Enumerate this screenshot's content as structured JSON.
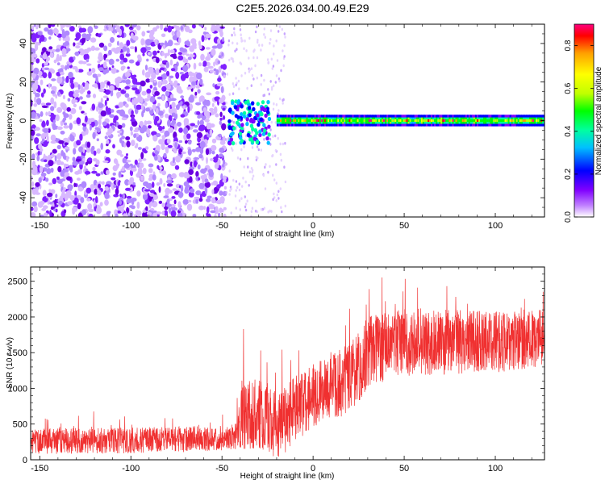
{
  "page_title": "C2E5.2026.034.00.49.E29",
  "chart_data": [
    {
      "type": "heatmap",
      "name": "spectrogram",
      "xlabel": "Height of straight line (km)",
      "ylabel": "Frequency (Hz)",
      "xlim": [
        -155,
        127
      ],
      "ylim": [
        -50,
        50
      ],
      "xticks": [
        -150,
        -100,
        -50,
        0,
        50,
        100
      ],
      "xtick_labels": [
        "-150",
        "-100",
        "-50",
        "0",
        "50",
        "100"
      ],
      "yticks": [
        -40,
        -20,
        0,
        20,
        40
      ],
      "ytick_labels": [
        "-40",
        "-20",
        "0",
        "20",
        "40"
      ],
      "noise_region_x": [
        -155,
        -48
      ],
      "transition_region_x": [
        -48,
        -20
      ],
      "signal_band_x": [
        -20,
        127
      ],
      "signal_frequency_hz": 0,
      "signal_halfwidth_hz": 3,
      "colorbar": {
        "label": "Normalized spectral amplitude",
        "range": [
          0.0,
          0.9
        ],
        "ticks": [
          0.0,
          0.2,
          0.4,
          0.6,
          0.8
        ],
        "tick_labels": [
          "0.0",
          "0.2",
          "0.4",
          "0.6",
          "0.8"
        ],
        "colors": [
          "#ffffff",
          "#c080ff",
          "#8000ff",
          "#0000ff",
          "#00c0ff",
          "#00ffa0",
          "#00ff00",
          "#c0ff00",
          "#ffff00",
          "#ffa000",
          "#ff0000",
          "#ff0080"
        ]
      }
    },
    {
      "type": "line",
      "name": "snr",
      "xlabel": "Height of straight line (km)",
      "ylabel": "SNR (10 * v/v)",
      "xlim": [
        -155,
        127
      ],
      "ylim": [
        0,
        2700
      ],
      "xticks": [
        -150,
        -100,
        -50,
        0,
        50,
        100
      ],
      "xtick_labels": [
        "-150",
        "-100",
        "-50",
        "0",
        "50",
        "100"
      ],
      "yticks": [
        0,
        500,
        1000,
        1500,
        2000,
        2500
      ],
      "ytick_labels": [
        "0",
        "500",
        "1000",
        "1500",
        "2000",
        "2500"
      ],
      "line_color": "#f03030",
      "trend": {
        "x": [
          -155,
          -100,
          -50,
          -42,
          -40,
          -25,
          -20,
          -10,
          0,
          10,
          20,
          25,
          30,
          40,
          50,
          70,
          100,
          127
        ],
        "y": [
          260,
          270,
          300,
          330,
          650,
          620,
          450,
          700,
          900,
          1000,
          1150,
          1300,
          1500,
          1600,
          1650,
          1650,
          1650,
          1700
        ]
      },
      "noise_amplitude": {
        "x": [
          -155,
          -42,
          -40,
          0,
          30,
          127
        ],
        "y": [
          180,
          180,
          500,
          450,
          500,
          400
        ]
      },
      "peak_max": 2650
    }
  ]
}
